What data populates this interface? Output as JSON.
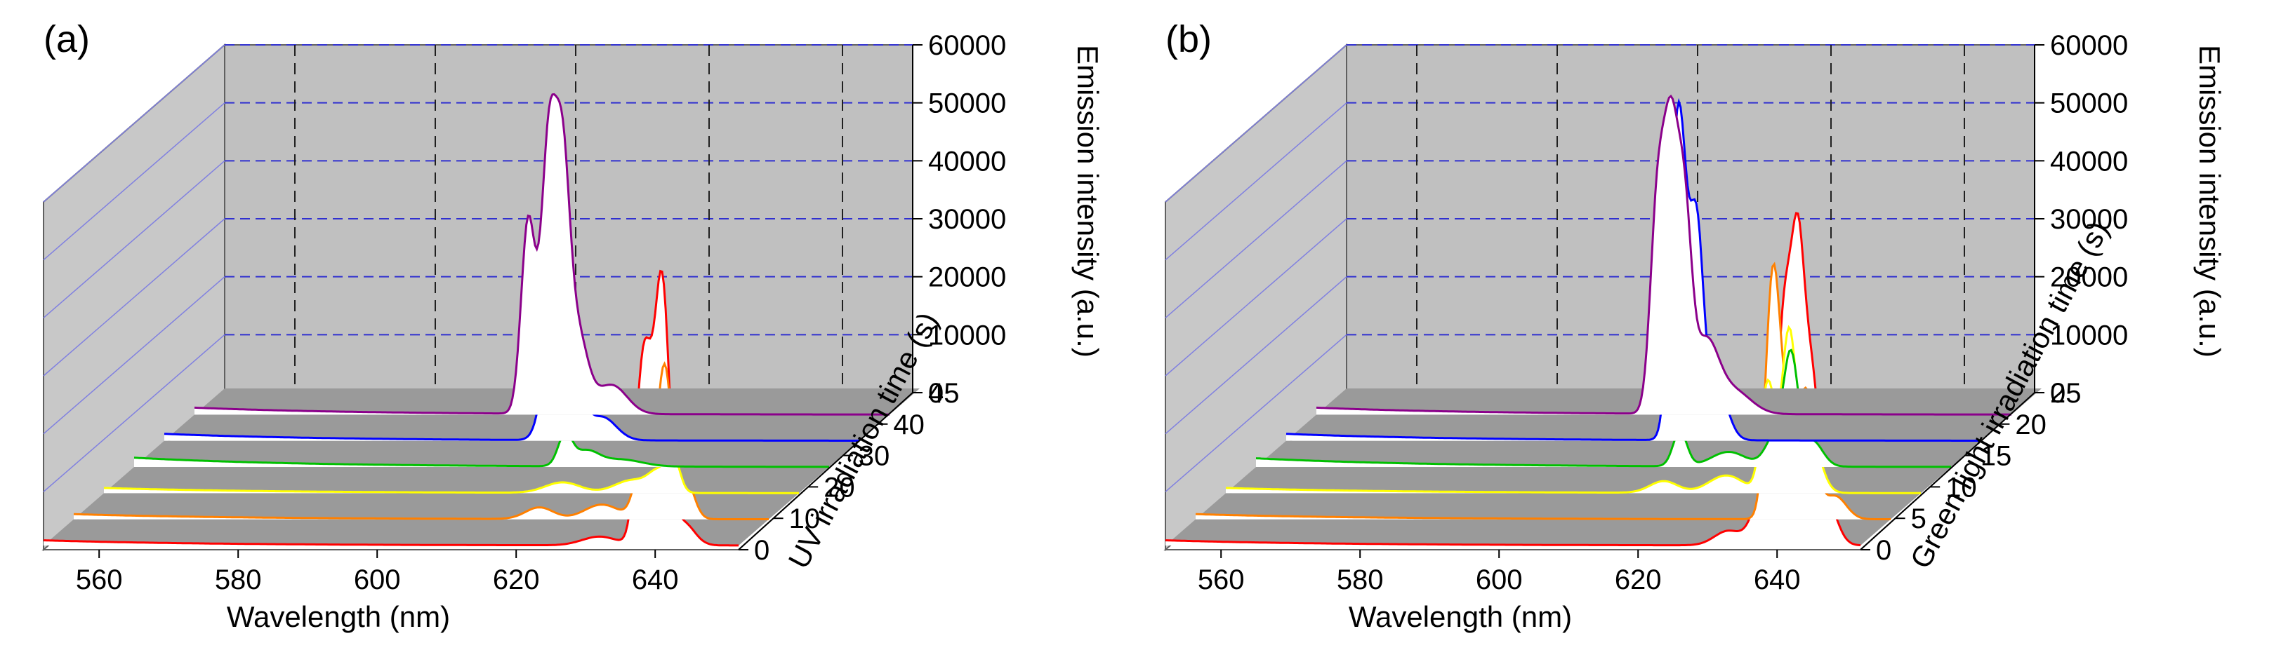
{
  "chart_data": [
    {
      "type": "line",
      "panel_label": "(a)",
      "style": "3d-waterfall",
      "xlabel": "Wavelength (nm)",
      "ylabel": "UV irradiation time (s)",
      "zlabel": "Emission intensity (a.u.)",
      "x_ticks": [
        "560",
        "580",
        "600",
        "620",
        "640"
      ],
      "y_ticks": [
        "0",
        "10",
        "20",
        "30",
        "40",
        "45"
      ],
      "z_ticks": [
        "0",
        "10000",
        "20000",
        "30000",
        "40000",
        "50000",
        "60000"
      ],
      "xlim": [
        552,
        652
      ],
      "zlim": [
        0,
        60000
      ],
      "grid": true,
      "series": [
        {
          "time": 0,
          "color": "#8B008B",
          "baseline": 1200,
          "peaks": [
            {
              "x": 603,
              "y": 47000,
              "w": 1.1
            },
            {
              "x": 600,
              "y": 33000,
              "w": 1.0
            },
            {
              "x": 605,
              "y": 36000,
              "w": 1.0
            },
            {
              "x": 607,
              "y": 14000,
              "w": 1.5
            },
            {
              "x": 612,
              "y": 5000,
              "w": 2.2
            }
          ]
        },
        {
          "time": 10,
          "color": "#0000FF",
          "baseline": 1200,
          "peaks": [
            {
              "x": 608,
              "y": 20000,
              "w": 1.4
            },
            {
              "x": 611,
              "y": 11000,
              "w": 1.3
            },
            {
              "x": 615,
              "y": 4000,
              "w": 2.0
            }
          ]
        },
        {
          "time": 20,
          "color": "#00C000",
          "baseline": 1600,
          "peaks": [
            {
              "x": 614,
              "y": 5200,
              "w": 1.0
            },
            {
              "x": 617,
              "y": 2500,
              "w": 1.8
            },
            {
              "x": 622,
              "y": 1200,
              "w": 3.0
            }
          ]
        },
        {
          "time": 30,
          "color": "#FFFF00",
          "baseline": 900,
          "peaks": [
            {
              "x": 634,
              "y": 5000,
              "w": 0.9
            },
            {
              "x": 632,
              "y": 3500,
              "w": 1.5
            },
            {
              "x": 628,
              "y": 2200,
              "w": 2.5
            },
            {
              "x": 618,
              "y": 1800,
              "w": 2.5
            }
          ]
        },
        {
          "time": 40,
          "color": "#FF8000",
          "baseline": 900,
          "peaks": [
            {
              "x": 634,
              "y": 11000,
              "w": 1.2
            },
            {
              "x": 637,
              "y": 26000,
              "w": 1.0
            },
            {
              "x": 640,
              "y": 7000,
              "w": 1.2
            },
            {
              "x": 628,
              "y": 2500,
              "w": 2.5
            },
            {
              "x": 619,
              "y": 2000,
              "w": 2.0
            }
          ]
        },
        {
          "time": 45,
          "color": "#FF0000",
          "baseline": 900,
          "peaks": [
            {
              "x": 641,
              "y": 44000,
              "w": 1.0
            },
            {
              "x": 638,
              "y": 21000,
              "w": 1.0
            },
            {
              "x": 639,
              "y": 17000,
              "w": 1.0
            },
            {
              "x": 644,
              "y": 4000,
              "w": 1.6
            },
            {
              "x": 632,
              "y": 1500,
              "w": 2.5
            }
          ]
        }
      ]
    },
    {
      "type": "line",
      "panel_label": "(b)",
      "style": "3d-waterfall",
      "xlabel": "Wavelength (nm)",
      "ylabel": "Green light irradiation time (s)",
      "zlabel": "Emission intensity (a.u.)",
      "x_ticks": [
        "560",
        "580",
        "600",
        "620",
        "640"
      ],
      "y_ticks": [
        "0",
        "5",
        "10",
        "15",
        "20",
        "25"
      ],
      "z_ticks": [
        "0",
        "10000",
        "20000",
        "30000",
        "40000",
        "50000",
        "60000"
      ],
      "xlim": [
        552,
        652
      ],
      "zlim": [
        0,
        60000
      ],
      "grid": true,
      "series": [
        {
          "time": 25,
          "color": "#8B008B",
          "baseline": 1200,
          "peaks": [
            {
              "x": 603,
              "y": 46000,
              "w": 1.1
            },
            {
              "x": 601,
              "y": 33000,
              "w": 1.0
            },
            {
              "x": 605,
              "y": 30000,
              "w": 1.0
            },
            {
              "x": 608,
              "y": 12000,
              "w": 1.8
            },
            {
              "x": 612,
              "y": 4000,
              "w": 2.5
            }
          ]
        },
        {
          "time": 20,
          "color": "#0000FF",
          "baseline": 1200,
          "peaks": [
            {
              "x": 608,
              "y": 39000,
              "w": 1.0
            },
            {
              "x": 611,
              "y": 37000,
              "w": 1.0
            },
            {
              "x": 609,
              "y": 26000,
              "w": 0.9
            },
            {
              "x": 614,
              "y": 9000,
              "w": 1.5
            }
          ]
        },
        {
          "time": 15,
          "color": "#00C000",
          "baseline": 1500,
          "peaks": [
            {
              "x": 613,
              "y": 6000,
              "w": 1.0
            },
            {
              "x": 629,
              "y": 17000,
              "w": 1.0
            },
            {
              "x": 627,
              "y": 6000,
              "w": 1.5
            },
            {
              "x": 632,
              "y": 4500,
              "w": 1.5
            },
            {
              "x": 620,
              "y": 2500,
              "w": 2.5
            }
          ]
        },
        {
          "time": 10,
          "color": "#FFFF00",
          "baseline": 900,
          "peaks": [
            {
              "x": 630,
              "y": 19000,
              "w": 1.0
            },
            {
              "x": 633,
              "y": 27000,
              "w": 1.0
            },
            {
              "x": 636,
              "y": 10000,
              "w": 1.5
            },
            {
              "x": 624,
              "y": 3000,
              "w": 2.5
            },
            {
              "x": 615,
              "y": 2000,
              "w": 2.0
            }
          ]
        },
        {
          "time": 5,
          "color": "#FF8000",
          "baseline": 900,
          "peaks": [
            {
              "x": 635,
              "y": 37000,
              "w": 1.0
            },
            {
              "x": 640,
              "y": 20000,
              "w": 1.2
            },
            {
              "x": 637,
              "y": 16000,
              "w": 1.5
            },
            {
              "x": 644,
              "y": 4000,
              "w": 1.6
            }
          ]
        },
        {
          "time": 0,
          "color": "#FF0000",
          "baseline": 900,
          "peaks": [
            {
              "x": 641,
              "y": 36000,
              "w": 1.0
            },
            {
              "x": 643,
              "y": 49000,
              "w": 1.0
            },
            {
              "x": 645,
              "y": 23000,
              "w": 1.0
            },
            {
              "x": 647,
              "y": 8000,
              "w": 1.5
            },
            {
              "x": 638,
              "y": 9000,
              "w": 1.5
            },
            {
              "x": 633,
              "y": 2500,
              "w": 2.0
            }
          ]
        }
      ]
    }
  ]
}
